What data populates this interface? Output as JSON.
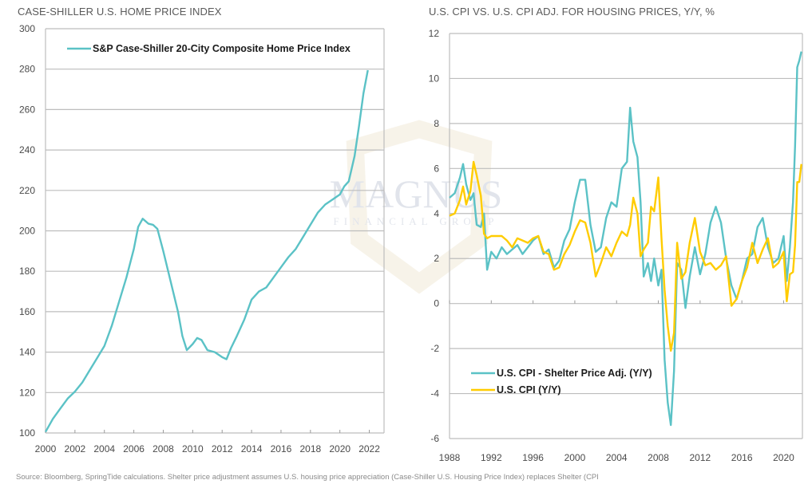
{
  "colors": {
    "teal": "#5bc2c6",
    "yellow": "#ffcc00",
    "grid": "#bdbdbd",
    "watermark": "#c8a860"
  },
  "watermark": {
    "line1": "MAGNUS",
    "line2": "FINANCIAL GROUP"
  },
  "source_note": "Source: Bloomberg, SpringTide calculations. Shelter price adjustment assumes U.S. housing price appreciation (Case-Shiller U.S. Housing Price Index) replaces Shelter (CPI",
  "chart_data": [
    {
      "type": "line",
      "title": "CASE-SHILLER U.S. HOME PRICE INDEX",
      "xlabel": "",
      "ylabel": "",
      "xlim": [
        2000,
        2023
      ],
      "ylim": [
        100,
        300
      ],
      "xticks": [
        2000,
        2002,
        2004,
        2006,
        2008,
        2010,
        2012,
        2014,
        2016,
        2018,
        2020,
        2022
      ],
      "yticks": [
        100,
        120,
        140,
        160,
        180,
        200,
        220,
        240,
        260,
        280,
        300
      ],
      "grid": true,
      "legend_position": "top",
      "series": [
        {
          "name": "S&P Case-Shiller 20-City Composite Home Price Index",
          "color": "#5bc2c6",
          "x": [
            2000.0,
            2000.5,
            2001.0,
            2001.5,
            2002.0,
            2002.5,
            2003.0,
            2003.5,
            2004.0,
            2004.5,
            2005.0,
            2005.5,
            2006.0,
            2006.3,
            2006.6,
            2007.0,
            2007.3,
            2007.6,
            2008.0,
            2008.5,
            2009.0,
            2009.3,
            2009.6,
            2010.0,
            2010.3,
            2010.6,
            2011.0,
            2011.5,
            2012.0,
            2012.3,
            2012.6,
            2013.0,
            2013.5,
            2014.0,
            2014.5,
            2015.0,
            2015.5,
            2016.0,
            2016.5,
            2017.0,
            2017.5,
            2018.0,
            2018.5,
            2019.0,
            2019.5,
            2020.0,
            2020.3,
            2020.6,
            2021.0,
            2021.3,
            2021.6,
            2021.9
          ],
          "values": [
            100.5,
            107,
            112,
            117,
            120.5,
            125,
            131,
            137,
            143,
            153,
            165,
            177,
            191,
            202,
            206,
            203.5,
            203,
            201,
            190,
            175,
            160,
            148,
            141,
            144,
            147,
            146,
            141,
            140,
            137.5,
            136.5,
            142,
            148,
            156,
            166,
            170,
            172,
            177,
            182,
            187,
            191,
            197,
            203,
            209,
            213,
            215.5,
            218,
            222,
            224.5,
            237,
            252,
            268,
            279.5
          ]
        }
      ]
    },
    {
      "type": "line",
      "title": "U.S. CPI VS. U.S. CPI ADJ. FOR HOUSING PRICES, Y/Y, %",
      "xlabel": "",
      "ylabel": "",
      "xlim": [
        1988,
        2021.8
      ],
      "ylim": [
        -6,
        12
      ],
      "xticks": [
        1988,
        1992,
        1996,
        2000,
        2004,
        2008,
        2012,
        2016,
        2020
      ],
      "yticks": [
        -6,
        -4,
        -2,
        0,
        2,
        4,
        6,
        8,
        10,
        12
      ],
      "grid": true,
      "legend_position": "bottom-left",
      "series": [
        {
          "name": "U.S. CPI - Shelter Price Adj. (Y/Y)",
          "color": "#5bc2c6",
          "x": [
            1988.0,
            1988.5,
            1989.0,
            1989.3,
            1989.6,
            1990.0,
            1990.3,
            1990.6,
            1991.0,
            1991.3,
            1991.6,
            1992.0,
            1992.5,
            1993.0,
            1993.5,
            1994.0,
            1994.5,
            1995.0,
            1995.5,
            1996.0,
            1996.5,
            1997.0,
            1997.5,
            1998.0,
            1998.5,
            1999.0,
            1999.5,
            2000.0,
            2000.5,
            2001.0,
            2001.5,
            2002.0,
            2002.5,
            2003.0,
            2003.5,
            2004.0,
            2004.5,
            2005.0,
            2005.3,
            2005.6,
            2006.0,
            2006.3,
            2006.6,
            2007.0,
            2007.3,
            2007.6,
            2008.0,
            2008.3,
            2008.6,
            2008.9,
            2009.2,
            2009.5,
            2009.8,
            2010.2,
            2010.6,
            2011.0,
            2011.5,
            2012.0,
            2012.5,
            2013.0,
            2013.5,
            2014.0,
            2014.5,
            2015.0,
            2015.5,
            2016.0,
            2016.5,
            2017.0,
            2017.5,
            2018.0,
            2018.5,
            2019.0,
            2019.5,
            2020.0,
            2020.3,
            2020.6,
            2020.9,
            2021.1,
            2021.3,
            2021.5,
            2021.7
          ],
          "values": [
            4.7,
            4.9,
            5.6,
            6.2,
            5.3,
            4.6,
            4.9,
            3.5,
            3.4,
            4.0,
            1.5,
            2.3,
            2.0,
            2.5,
            2.2,
            2.4,
            2.6,
            2.2,
            2.5,
            2.8,
            3.0,
            2.2,
            2.4,
            1.6,
            1.9,
            2.8,
            3.3,
            4.5,
            5.5,
            5.5,
            3.5,
            2.3,
            2.5,
            3.8,
            4.5,
            4.3,
            6.0,
            6.3,
            8.7,
            7.2,
            6.5,
            4.5,
            1.2,
            1.8,
            1.0,
            2.0,
            0.8,
            1.5,
            -2.5,
            -4.4,
            -5.4,
            -3.0,
            1.8,
            1.5,
            -0.2,
            1.2,
            2.5,
            1.3,
            2.2,
            3.6,
            4.3,
            3.6,
            2.0,
            0.8,
            0.2,
            1.0,
            2.0,
            2.2,
            3.4,
            3.8,
            2.5,
            1.8,
            2.0,
            3.0,
            1.0,
            2.5,
            4.5,
            7.0,
            10.5,
            10.8,
            11.2
          ]
        },
        {
          "name": "U.S. CPI (Y/Y)",
          "color": "#ffcc00",
          "x": [
            1988.0,
            1988.5,
            1989.0,
            1989.3,
            1989.6,
            1990.0,
            1990.3,
            1990.6,
            1991.0,
            1991.3,
            1991.6,
            1992.0,
            1992.5,
            1993.0,
            1993.5,
            1994.0,
            1994.5,
            1995.0,
            1995.5,
            1996.0,
            1996.5,
            1997.0,
            1997.5,
            1998.0,
            1998.5,
            1999.0,
            1999.5,
            2000.0,
            2000.5,
            2001.0,
            2001.5,
            2002.0,
            2002.5,
            2003.0,
            2003.5,
            2004.0,
            2004.5,
            2005.0,
            2005.3,
            2005.6,
            2006.0,
            2006.3,
            2006.6,
            2007.0,
            2007.3,
            2007.6,
            2008.0,
            2008.3,
            2008.6,
            2008.9,
            2009.2,
            2009.5,
            2009.8,
            2010.2,
            2010.6,
            2011.0,
            2011.5,
            2012.0,
            2012.5,
            2013.0,
            2013.5,
            2014.0,
            2014.5,
            2015.0,
            2015.5,
            2016.0,
            2016.5,
            2017.0,
            2017.5,
            2018.0,
            2018.5,
            2019.0,
            2019.5,
            2020.0,
            2020.3,
            2020.6,
            2020.9,
            2021.1,
            2021.3,
            2021.5,
            2021.7
          ],
          "values": [
            3.9,
            4.0,
            4.6,
            5.2,
            4.4,
            5.0,
            6.3,
            5.7,
            4.8,
            3.1,
            2.9,
            3.0,
            3.0,
            3.0,
            2.8,
            2.5,
            2.9,
            2.8,
            2.7,
            2.9,
            3.0,
            2.3,
            2.2,
            1.5,
            1.6,
            2.2,
            2.6,
            3.2,
            3.7,
            3.6,
            2.7,
            1.2,
            1.8,
            2.5,
            2.1,
            2.7,
            3.2,
            3.0,
            3.5,
            4.7,
            4.0,
            2.1,
            2.4,
            2.7,
            4.3,
            4.1,
            5.6,
            2.9,
            0.6,
            -1.0,
            -2.1,
            -1.3,
            2.7,
            1.1,
            1.4,
            2.7,
            3.8,
            2.3,
            1.7,
            1.8,
            1.5,
            1.7,
            2.1,
            -0.1,
            0.2,
            1.0,
            1.6,
            2.7,
            1.8,
            2.4,
            2.9,
            1.6,
            1.8,
            2.3,
            0.1,
            1.3,
            1.4,
            2.6,
            5.4,
            5.4,
            6.2
          ]
        }
      ]
    }
  ]
}
